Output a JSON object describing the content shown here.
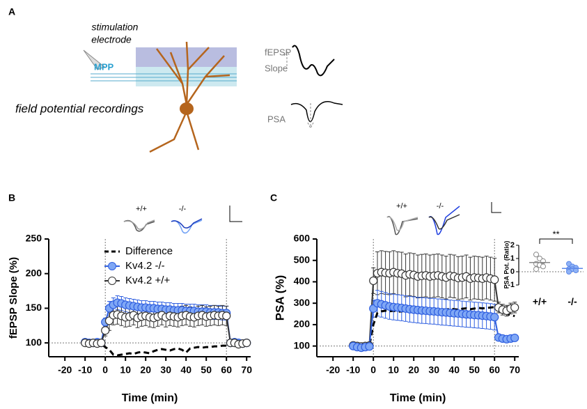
{
  "panel_a": {
    "label": "A",
    "electrode": [
      "stimulation",
      "electrode"
    ],
    "pathway": "MPP",
    "recording": "field potential recordings",
    "trace_labels": {
      "fepsp": [
        "fEPSP",
        "Slope"
      ],
      "psa": "PSA"
    }
  },
  "chart_data": [
    {
      "type": "line",
      "panel": "B",
      "xlabel": "Time (min)",
      "ylabel": "fEPSP Slope (%)",
      "trace_labels": [
        "+/+",
        "-/-"
      ],
      "legend": "upper-left",
      "xlim": [
        -28,
        72
      ],
      "ylim": [
        80,
        250
      ],
      "xticks": [
        -20,
        -10,
        0,
        10,
        20,
        30,
        40,
        50,
        60,
        70
      ],
      "yticks": [
        100,
        150,
        200,
        250
      ],
      "hlines": [
        100
      ],
      "vlines": [
        0,
        60
      ],
      "x": [
        -10,
        -8,
        -6,
        -4,
        -2,
        0,
        2,
        4,
        6,
        8,
        10,
        12,
        14,
        16,
        18,
        20,
        22,
        24,
        26,
        28,
        30,
        32,
        34,
        36,
        38,
        40,
        42,
        44,
        46,
        48,
        50,
        52,
        54,
        56,
        58,
        60,
        62,
        64,
        66,
        68,
        70
      ],
      "series": [
        {
          "name": "Difference",
          "color": "#000000",
          "dash": true,
          "marker": false,
          "values": [
            99,
            98,
            97,
            98,
            98,
            94,
            90,
            83,
            82,
            83,
            84,
            85,
            84,
            86,
            87,
            86,
            85,
            88,
            90,
            91,
            90,
            89,
            91,
            92,
            90,
            86,
            92,
            93,
            94,
            93,
            94,
            94,
            95,
            95,
            96,
            96,
            99,
            100,
            100,
            100,
            100
          ]
        },
        {
          "name": "Kv4.2 -/-",
          "color": "#2f5fe0",
          "fill": "#7fa7f5",
          "dash": false,
          "marker": true,
          "values": [
            101,
            100,
            100,
            101,
            100,
            130,
            150,
            155,
            158,
            157,
            155,
            154,
            153,
            152,
            151,
            151,
            150,
            150,
            149,
            149,
            148,
            148,
            147,
            147,
            147,
            146,
            146,
            146,
            145,
            145,
            145,
            144,
            144,
            144,
            143,
            143,
            100,
            101,
            100,
            99,
            100
          ],
          "errors": [
            3,
            3,
            3,
            3,
            3,
            6,
            10,
            10,
            10,
            10,
            10,
            10,
            10,
            10,
            10,
            10,
            10,
            10,
            10,
            10,
            10,
            10,
            10,
            10,
            10,
            10,
            10,
            10,
            10,
            10,
            10,
            10,
            10,
            10,
            10,
            10,
            3,
            3,
            3,
            3,
            3
          ]
        },
        {
          "name": "Kv4.2 +/+",
          "color": "#333333",
          "fill": "#ffffff",
          "dash": false,
          "marker": true,
          "values": [
            100,
            99,
            100,
            99,
            100,
            118,
            132,
            140,
            141,
            139,
            137,
            138,
            140,
            136,
            138,
            139,
            137,
            136,
            138,
            140,
            137,
            139,
            138,
            137,
            139,
            140,
            138,
            137,
            139,
            140,
            138,
            139,
            140,
            139,
            140,
            139,
            100,
            100,
            98,
            99,
            100
          ],
          "errors": [
            3,
            3,
            3,
            3,
            3,
            8,
            14,
            14,
            14,
            14,
            14,
            14,
            14,
            14,
            14,
            14,
            14,
            14,
            14,
            14,
            14,
            14,
            14,
            14,
            14,
            14,
            14,
            14,
            14,
            14,
            14,
            14,
            14,
            14,
            14,
            14,
            4,
            4,
            4,
            4,
            4
          ]
        }
      ]
    },
    {
      "type": "line",
      "panel": "C",
      "xlabel": "Time (min)",
      "ylabel": "PSA (%)",
      "trace_labels": [
        "+/+",
        "-/-"
      ],
      "xlim": [
        -28,
        72
      ],
      "ylim": [
        50,
        600
      ],
      "xticks": [
        -20,
        -10,
        0,
        10,
        20,
        30,
        40,
        50,
        60,
        70
      ],
      "yticks": [
        100,
        200,
        300,
        400,
        500,
        600
      ],
      "hlines": [
        100
      ],
      "vlines": [
        0,
        60
      ],
      "x": [
        -10,
        -8,
        -6,
        -4,
        -2,
        0,
        2,
        4,
        6,
        8,
        10,
        12,
        14,
        16,
        18,
        20,
        22,
        24,
        26,
        28,
        30,
        32,
        34,
        36,
        38,
        40,
        42,
        44,
        46,
        48,
        50,
        52,
        54,
        56,
        58,
        60,
        62,
        64,
        66,
        68,
        70
      ],
      "series": [
        {
          "color": "#000000",
          "dash": true,
          "marker": false,
          "values": [
            100,
            98,
            96,
            98,
            100,
            200,
            255,
            262,
            265,
            262,
            265,
            260,
            262,
            265,
            270,
            268,
            265,
            270,
            268,
            272,
            270,
            268,
            272,
            270,
            275,
            272,
            270,
            274,
            276,
            272,
            275,
            278,
            276,
            278,
            280,
            282,
            270,
            260,
            250,
            245,
            240
          ]
        },
        {
          "color": "#333333",
          "fill": "#ffffff",
          "dash": false,
          "marker": true,
          "values": [
            103,
            100,
            98,
            100,
            102,
            405,
            440,
            445,
            442,
            440,
            445,
            440,
            438,
            430,
            435,
            432,
            425,
            428,
            430,
            425,
            428,
            430,
            425,
            420,
            428,
            425,
            418,
            420,
            425,
            415,
            420,
            418,
            415,
            420,
            415,
            410,
            280,
            270,
            265,
            275,
            280
          ],
          "errors": [
            10,
            10,
            10,
            10,
            10,
            60,
            100,
            100,
            100,
            100,
            100,
            100,
            100,
            100,
            100,
            100,
            100,
            100,
            100,
            100,
            100,
            100,
            100,
            100,
            100,
            100,
            100,
            100,
            100,
            100,
            100,
            100,
            100,
            100,
            100,
            100,
            25,
            25,
            25,
            25,
            25
          ]
        },
        {
          "color": "#2f5fe0",
          "fill": "#7fa7f5",
          "dash": false,
          "marker": true,
          "values": [
            100,
            95,
            92,
            95,
            98,
            275,
            300,
            295,
            290,
            285,
            282,
            280,
            278,
            275,
            272,
            270,
            268,
            266,
            265,
            263,
            262,
            260,
            258,
            257,
            255,
            253,
            252,
            250,
            248,
            247,
            245,
            244,
            242,
            240,
            238,
            235,
            140,
            135,
            132,
            135,
            138
          ],
          "errors": [
            8,
            8,
            8,
            8,
            8,
            40,
            60,
            60,
            60,
            60,
            60,
            60,
            60,
            60,
            60,
            60,
            60,
            60,
            60,
            60,
            60,
            60,
            60,
            60,
            60,
            60,
            60,
            60,
            60,
            60,
            60,
            60,
            60,
            60,
            60,
            60,
            15,
            15,
            15,
            15,
            15
          ]
        }
      ]
    },
    {
      "type": "strip",
      "ylabel": "PSA Pot. (Ratio)",
      "annotation": "**",
      "ylim": [
        -1,
        2
      ],
      "yticks": [
        -1,
        0,
        1,
        2
      ],
      "hlines": [
        0
      ],
      "categories": [
        "+/+",
        "-/-"
      ],
      "series": [
        {
          "color": "#888888",
          "fill": "#ffffff",
          "values": [
            1.3,
            1.0,
            0.8,
            0.6,
            0.5,
            0.4,
            0.2
          ],
          "mean": 0.7
        },
        {
          "color": "#5b87e8",
          "fill": "#8fb2f5",
          "values": [
            0.6,
            0.4,
            0.3,
            0.2,
            0.2,
            0.1,
            0.0
          ],
          "mean": 0.25
        }
      ]
    }
  ]
}
